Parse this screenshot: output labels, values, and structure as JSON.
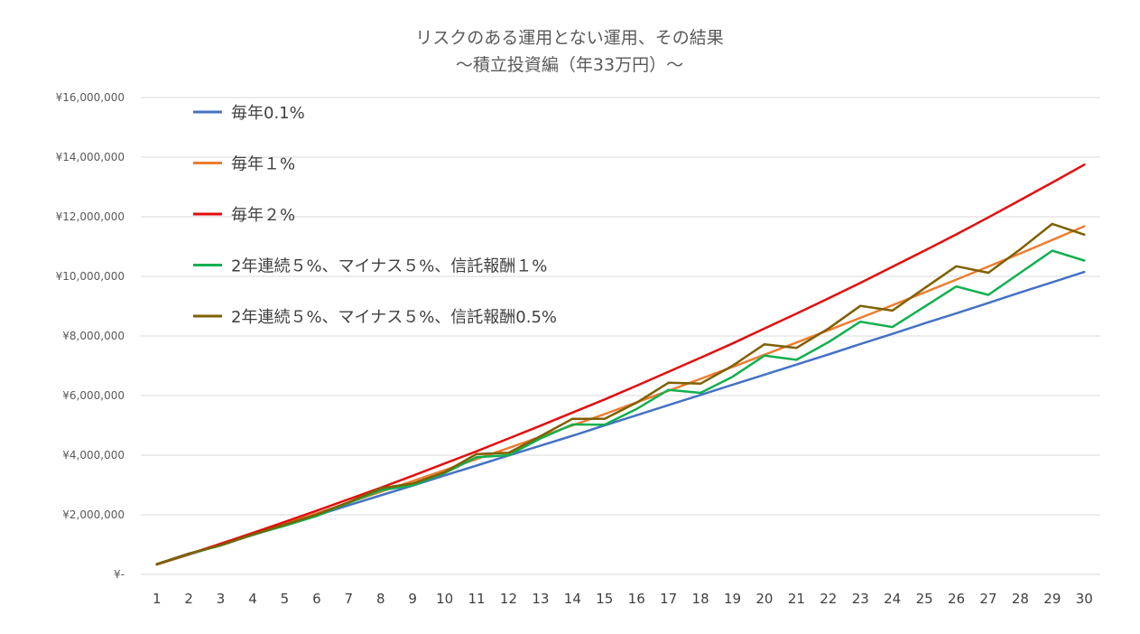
{
  "chart_data": {
    "type": "line",
    "title": "リスクのある運用とない運用、その結果",
    "subtitle": "～積立投資編（年33万円）～",
    "xlabel": "",
    "ylabel": "",
    "ylim": [
      0,
      16000000
    ],
    "yticks": [
      {
        "value": 0,
        "label": "¥-"
      },
      {
        "value": 2000000,
        "label": "¥2,000,000"
      },
      {
        "value": 4000000,
        "label": "¥4,000,000"
      },
      {
        "value": 6000000,
        "label": "¥6,000,000"
      },
      {
        "value": 8000000,
        "label": "¥8,000,000"
      },
      {
        "value": 10000000,
        "label": "¥10,000,000"
      },
      {
        "value": 12000000,
        "label": "¥12,000,000"
      },
      {
        "value": 14000000,
        "label": "¥14,000,000"
      },
      {
        "value": 16000000,
        "label": "¥16,000,000"
      }
    ],
    "grid": true,
    "legend_position": "top-left",
    "categories": [
      "1",
      "2",
      "3",
      "4",
      "5",
      "6",
      "7",
      "8",
      "9",
      "10",
      "11",
      "12",
      "13",
      "14",
      "15",
      "16",
      "17",
      "18",
      "19",
      "20",
      "21",
      "22",
      "23",
      "24",
      "25",
      "26",
      "27",
      "28",
      "29",
      "30"
    ],
    "series": [
      {
        "name": "毎年0.1%",
        "color": "#4472c4",
        "values": [
          330000,
          660000,
          990000,
          1320000,
          1650000,
          1980000,
          2320000,
          2650000,
          2980000,
          3320000,
          3650000,
          3990000,
          4320000,
          4650000,
          5000000,
          5340000,
          5680000,
          6020000,
          6360000,
          6700000,
          7040000,
          7380000,
          7730000,
          8070000,
          8420000,
          8760000,
          9110000,
          9460000,
          9800000,
          10150000
        ]
      },
      {
        "name": "毎年１%",
        "color": "#ed7d31",
        "values": [
          333000,
          670000,
          1010000,
          1350000,
          1700000,
          2050000,
          2410000,
          2770000,
          3130000,
          3500000,
          3870000,
          4240000,
          4620000,
          5000000,
          5380000,
          5770000,
          6160000,
          6560000,
          6960000,
          7370000,
          7780000,
          8190000,
          8610000,
          9030000,
          9460000,
          9890000,
          10330000,
          10770000,
          11220000,
          11680000
        ]
      },
      {
        "name": "毎年２%",
        "color": "#e30d0d",
        "values": [
          337000,
          680000,
          1030000,
          1390000,
          1760000,
          2140000,
          2520000,
          2910000,
          3310000,
          3720000,
          4130000,
          4560000,
          4990000,
          5430000,
          5870000,
          6330000,
          6800000,
          7270000,
          7750000,
          8250000,
          8750000,
          9260000,
          9780000,
          10320000,
          10860000,
          11410000,
          11980000,
          12560000,
          13150000,
          13750000
        ]
      },
      {
        "name": "2年連続５%、マイナス５%、信託報酬１%",
        "color": "#11b04f",
        "values": [
          343000,
          690000,
          970000,
          1330000,
          1630000,
          1960000,
          2400000,
          2820000,
          2990000,
          3400000,
          3930000,
          4000000,
          4560000,
          5030000,
          5020000,
          5550000,
          6190000,
          6090000,
          6630000,
          7340000,
          7200000,
          7790000,
          8480000,
          8300000,
          8980000,
          9660000,
          9380000,
          10120000,
          10860000,
          10530000
        ]
      },
      {
        "name": "2年連続５%、マイナス５%、信託報酬0.5%",
        "color": "#7f6000",
        "values": [
          345000,
          700000,
          980000,
          1340000,
          1670000,
          2010000,
          2420000,
          2890000,
          3050000,
          3430000,
          4040000,
          4080000,
          4640000,
          5220000,
          5220000,
          5760000,
          6430000,
          6400000,
          7000000,
          7720000,
          7600000,
          8250000,
          9010000,
          8850000,
          9600000,
          10340000,
          10120000,
          10910000,
          11760000,
          11400000
        ]
      }
    ]
  }
}
